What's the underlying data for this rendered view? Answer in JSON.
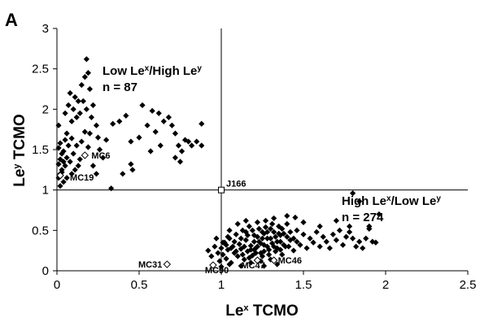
{
  "chart_data": {
    "type": "scatter",
    "panel_label": "A",
    "xlabel_main": "Le",
    "xlabel_sup": "x",
    "xlabel_rest": " TCMO",
    "ylabel_main": "Le",
    "ylabel_sup": "y",
    "ylabel_rest": " TCMO",
    "xlim": [
      0,
      2.5
    ],
    "ylim": [
      0,
      3
    ],
    "xticks": [
      "0",
      "0.5",
      "1",
      "1.5",
      "2",
      "2.5"
    ],
    "yticks": [
      "0",
      "0.5",
      "1",
      "1.5",
      "2",
      "2.5",
      "3"
    ],
    "grid": false,
    "reference_lines": {
      "x": 1,
      "y": 1
    },
    "regions": [
      {
        "line1": [
          "Low Le",
          "x",
          "/High Le",
          "y"
        ],
        "line2": "n = 87"
      },
      {
        "line1": [
          "High Le",
          "x",
          "/Low Le",
          "y"
        ],
        "line2": "n = 274"
      }
    ],
    "highlighted_points": [
      {
        "label": "J166",
        "x": 1.0,
        "y": 1.0,
        "marker": "open-square"
      },
      {
        "label": "MC6",
        "x": 0.17,
        "y": 1.43,
        "marker": "open-diamond"
      },
      {
        "label": "MC19",
        "x": 0.02,
        "y": 1.18,
        "marker": "open-diamond"
      },
      {
        "label": "MC31",
        "x": 0.67,
        "y": 0.08,
        "marker": "open-diamond"
      },
      {
        "label": "MC90",
        "x": 0.95,
        "y": 0.07,
        "marker": "open-diamond"
      },
      {
        "label": "MC47",
        "x": 1.22,
        "y": 0.13,
        "marker": "open-diamond"
      },
      {
        "label": "MC46",
        "x": 1.32,
        "y": 0.13,
        "marker": "open-diamond"
      }
    ],
    "series": [
      {
        "marker": "filled-diamond",
        "points": [
          [
            0.01,
            1.8
          ],
          [
            0.02,
            1.58
          ],
          [
            0.01,
            1.52
          ],
          [
            0.03,
            1.45
          ],
          [
            0.02,
            1.38
          ],
          [
            0.01,
            1.32
          ],
          [
            0.03,
            1.25
          ],
          [
            0.02,
            1.2
          ],
          [
            0.01,
            1.15
          ],
          [
            0.04,
            1.1
          ],
          [
            0.02,
            1.05
          ],
          [
            0.05,
            1.62
          ],
          [
            0.04,
            1.48
          ],
          [
            0.06,
            1.4
          ],
          [
            0.05,
            1.3
          ],
          [
            0.03,
            1.22
          ],
          [
            0.06,
            1.15
          ],
          [
            0.07,
            1.55
          ],
          [
            0.08,
            1.35
          ],
          [
            0.09,
            1.2
          ],
          [
            0.05,
            1.95
          ],
          [
            0.07,
            2.05
          ],
          [
            0.09,
            1.85
          ],
          [
            0.1,
            2.0
          ],
          [
            0.11,
            2.15
          ],
          [
            0.12,
            1.9
          ],
          [
            0.08,
            2.2
          ],
          [
            0.13,
            2.1
          ],
          [
            0.15,
            2.3
          ],
          [
            0.17,
            2.4
          ],
          [
            0.18,
            2.62
          ],
          [
            0.19,
            2.45
          ],
          [
            0.2,
            2.25
          ],
          [
            0.16,
            2.1
          ],
          [
            0.14,
            1.95
          ],
          [
            0.18,
            2.0
          ],
          [
            0.21,
            1.9
          ],
          [
            0.22,
            2.05
          ],
          [
            0.24,
            1.8
          ],
          [
            0.25,
            1.65
          ],
          [
            0.26,
            1.5
          ],
          [
            0.2,
            1.7
          ],
          [
            0.15,
            1.6
          ],
          [
            0.12,
            1.55
          ],
          [
            0.1,
            1.45
          ],
          [
            0.13,
            1.3
          ],
          [
            0.22,
            1.3
          ],
          [
            0.24,
            1.2
          ],
          [
            0.3,
            1.62
          ],
          [
            0.34,
            1.82
          ],
          [
            0.38,
            1.85
          ],
          [
            0.42,
            1.92
          ],
          [
            0.45,
            1.6
          ],
          [
            0.5,
            1.65
          ],
          [
            0.52,
            2.05
          ],
          [
            0.55,
            1.8
          ],
          [
            0.58,
            1.98
          ],
          [
            0.6,
            1.72
          ],
          [
            0.62,
            1.95
          ],
          [
            0.65,
            1.85
          ],
          [
            0.68,
            1.9
          ],
          [
            0.7,
            1.8
          ],
          [
            0.72,
            1.7
          ],
          [
            0.74,
            1.55
          ],
          [
            0.76,
            1.48
          ],
          [
            0.8,
            1.6
          ],
          [
            0.82,
            1.55
          ],
          [
            0.88,
            1.82
          ],
          [
            0.88,
            1.55
          ],
          [
            0.45,
            1.32
          ],
          [
            0.46,
            1.25
          ],
          [
            0.57,
            1.48
          ],
          [
            0.33,
            1.02
          ],
          [
            0.72,
            1.4
          ],
          [
            0.75,
            1.35
          ],
          [
            0.78,
            1.62
          ],
          [
            0.85,
            1.6
          ],
          [
            0.63,
            1.55
          ],
          [
            0.4,
            1.2
          ],
          [
            0.28,
            1.4
          ],
          [
            0.17,
            1.72
          ],
          [
            0.06,
            1.7
          ],
          [
            0.09,
            1.64
          ],
          [
            0.04,
            1.35
          ],
          [
            0.11,
            1.25
          ],
          [
            0.14,
            1.38
          ],
          [
            0.19,
            1.53
          ],
          [
            0.92,
            0.25
          ],
          [
            0.94,
            0.18
          ],
          [
            0.96,
            0.3
          ],
          [
            0.98,
            0.22
          ],
          [
            0.99,
            0.12
          ],
          [
            1.0,
            0.28
          ],
          [
            1.01,
            0.2
          ],
          [
            1.02,
            0.35
          ],
          [
            1.03,
            0.15
          ],
          [
            1.04,
            0.26
          ],
          [
            1.05,
            0.4
          ],
          [
            1.06,
            0.1
          ],
          [
            1.07,
            0.3
          ],
          [
            1.08,
            0.22
          ],
          [
            1.09,
            0.45
          ],
          [
            1.1,
            0.18
          ],
          [
            1.11,
            0.33
          ],
          [
            1.12,
            0.27
          ],
          [
            1.13,
            0.5
          ],
          [
            1.14,
            0.14
          ],
          [
            1.15,
            0.38
          ],
          [
            1.16,
            0.24
          ],
          [
            1.17,
            0.55
          ],
          [
            1.18,
            0.31
          ],
          [
            1.19,
            0.19
          ],
          [
            1.2,
            0.44
          ],
          [
            1.21,
            0.28
          ],
          [
            1.22,
            0.6
          ],
          [
            1.23,
            0.36
          ],
          [
            1.24,
            0.22
          ],
          [
            1.25,
            0.48
          ],
          [
            1.26,
            0.32
          ],
          [
            1.27,
            0.62
          ],
          [
            1.28,
            0.4
          ],
          [
            1.29,
            0.26
          ],
          [
            1.3,
            0.52
          ],
          [
            1.31,
            0.34
          ],
          [
            1.32,
            0.65
          ],
          [
            1.33,
            0.42
          ],
          [
            1.34,
            0.28
          ],
          [
            1.35,
            0.55
          ],
          [
            1.36,
            0.36
          ],
          [
            1.37,
            0.2
          ],
          [
            1.38,
            0.46
          ],
          [
            1.39,
            0.3
          ],
          [
            1.4,
            0.58
          ],
          [
            1.42,
            0.38
          ],
          [
            1.44,
            0.25
          ],
          [
            1.46,
            0.5
          ],
          [
            1.48,
            0.32
          ],
          [
            1.5,
            0.45
          ],
          [
            1.52,
            0.28
          ],
          [
            1.54,
            0.4
          ],
          [
            1.56,
            0.35
          ],
          [
            1.58,
            0.48
          ],
          [
            1.6,
            0.3
          ],
          [
            1.62,
            0.42
          ],
          [
            1.64,
            0.36
          ],
          [
            1.66,
            0.28
          ],
          [
            1.68,
            0.45
          ],
          [
            1.7,
            0.38
          ],
          [
            1.72,
            0.5
          ],
          [
            1.74,
            0.32
          ],
          [
            1.76,
            0.42
          ],
          [
            1.78,
            0.55
          ],
          [
            1.8,
            0.4
          ],
          [
            1.82,
            0.3
          ],
          [
            1.84,
            0.36
          ],
          [
            1.86,
            0.28
          ],
          [
            1.88,
            0.4
          ],
          [
            1.9,
            0.52
          ],
          [
            1.92,
            0.36
          ],
          [
            1.94,
            0.35
          ],
          [
            1.8,
            0.96
          ],
          [
            1.84,
            0.86
          ],
          [
            1.9,
            0.55
          ],
          [
            1.96,
            0.7
          ],
          [
            1.78,
            0.48
          ],
          [
            1.7,
            0.62
          ],
          [
            1.6,
            0.55
          ],
          [
            1.5,
            0.6
          ],
          [
            1.45,
            0.66
          ],
          [
            1.4,
            0.68
          ],
          [
            1.15,
            0.62
          ],
          [
            1.1,
            0.58
          ],
          [
            1.05,
            0.5
          ],
          [
            0.97,
            0.4
          ],
          [
            1.0,
            0.05
          ],
          [
            1.05,
            0.08
          ],
          [
            1.12,
            0.06
          ],
          [
            1.18,
            0.1
          ],
          [
            1.26,
            0.06
          ],
          [
            1.3,
            0.14
          ],
          [
            1.34,
            0.08
          ],
          [
            1.24,
            0.12
          ],
          [
            1.03,
            0.32
          ],
          [
            1.06,
            0.28
          ],
          [
            1.09,
            0.24
          ],
          [
            1.12,
            0.4
          ],
          [
            1.14,
            0.3
          ],
          [
            1.16,
            0.44
          ],
          [
            1.18,
            0.26
          ],
          [
            1.2,
            0.36
          ],
          [
            1.22,
            0.42
          ],
          [
            1.24,
            0.34
          ],
          [
            1.26,
            0.46
          ],
          [
            1.28,
            0.3
          ],
          [
            1.3,
            0.4
          ],
          [
            1.32,
            0.48
          ],
          [
            1.34,
            0.36
          ],
          [
            1.36,
            0.44
          ],
          [
            1.38,
            0.32
          ],
          [
            1.19,
            0.5
          ],
          [
            1.23,
            0.52
          ],
          [
            1.27,
            0.54
          ],
          [
            1.31,
            0.58
          ],
          [
            1.35,
            0.46
          ],
          [
            1.21,
            0.22
          ],
          [
            1.25,
            0.18
          ],
          [
            1.29,
            0.2
          ],
          [
            1.33,
            0.24
          ],
          [
            1.17,
            0.16
          ],
          [
            1.13,
            0.2
          ],
          [
            1.08,
            0.36
          ],
          [
            1.04,
            0.42
          ],
          [
            1.01,
            0.35
          ],
          [
            1.15,
            0.48
          ],
          [
            1.28,
            0.48
          ],
          [
            1.25,
            0.4
          ],
          [
            1.22,
            0.3
          ],
          [
            1.2,
            0.26
          ],
          [
            1.26,
            0.24
          ],
          [
            1.32,
            0.3
          ],
          [
            1.36,
            0.26
          ],
          [
            1.4,
            0.42
          ],
          [
            1.42,
            0.48
          ],
          [
            1.44,
            0.4
          ],
          [
            1.46,
            0.36
          ],
          [
            1.41,
            0.3
          ],
          [
            1.37,
            0.52
          ]
        ]
      }
    ]
  }
}
